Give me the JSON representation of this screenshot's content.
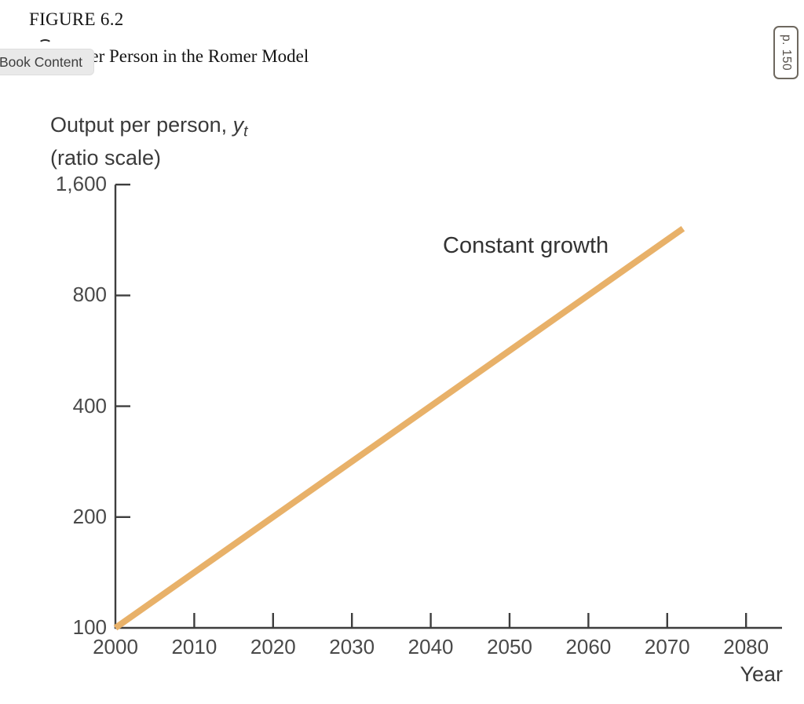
{
  "header": {
    "figure_label": "FIGURE 6.2",
    "title_covered_word": "Output",
    "title_visible": "per Person in the Romer Model",
    "book_content_tooltip": "Book Content",
    "page_badge": "p. 150"
  },
  "chart_data": {
    "type": "line",
    "title": "Output per Person in the Romer Model",
    "ylabel_line1_prefix": "Output per person, ",
    "ylabel_var": "y",
    "ylabel_var_sub": "t",
    "ylabel_line2": "(ratio scale)",
    "xlabel": "Year",
    "y_scale": "ratio (log base 2)",
    "grid": false,
    "legend": "none",
    "annotation": "Constant growth",
    "x_ticks": [
      "2000",
      "2010",
      "2020",
      "2030",
      "2040",
      "2050",
      "2060",
      "2070",
      "2080"
    ],
    "y_ticks": [
      {
        "value": 100,
        "label": "100"
      },
      {
        "value": 200,
        "label": "200"
      },
      {
        "value": 400,
        "label": "400"
      },
      {
        "value": 800,
        "label": "800"
      },
      {
        "value": 1600,
        "label": "1,600"
      }
    ],
    "xlim": [
      2000,
      2084
    ],
    "ylim": [
      100,
      1600
    ],
    "axis_color": "#3e3e3e",
    "series": [
      {
        "name": "Constant growth",
        "color": "#e8b169",
        "points": [
          {
            "year": 2000,
            "value": 100
          },
          {
            "year": 2072,
            "value": 1215
          }
        ]
      }
    ]
  }
}
